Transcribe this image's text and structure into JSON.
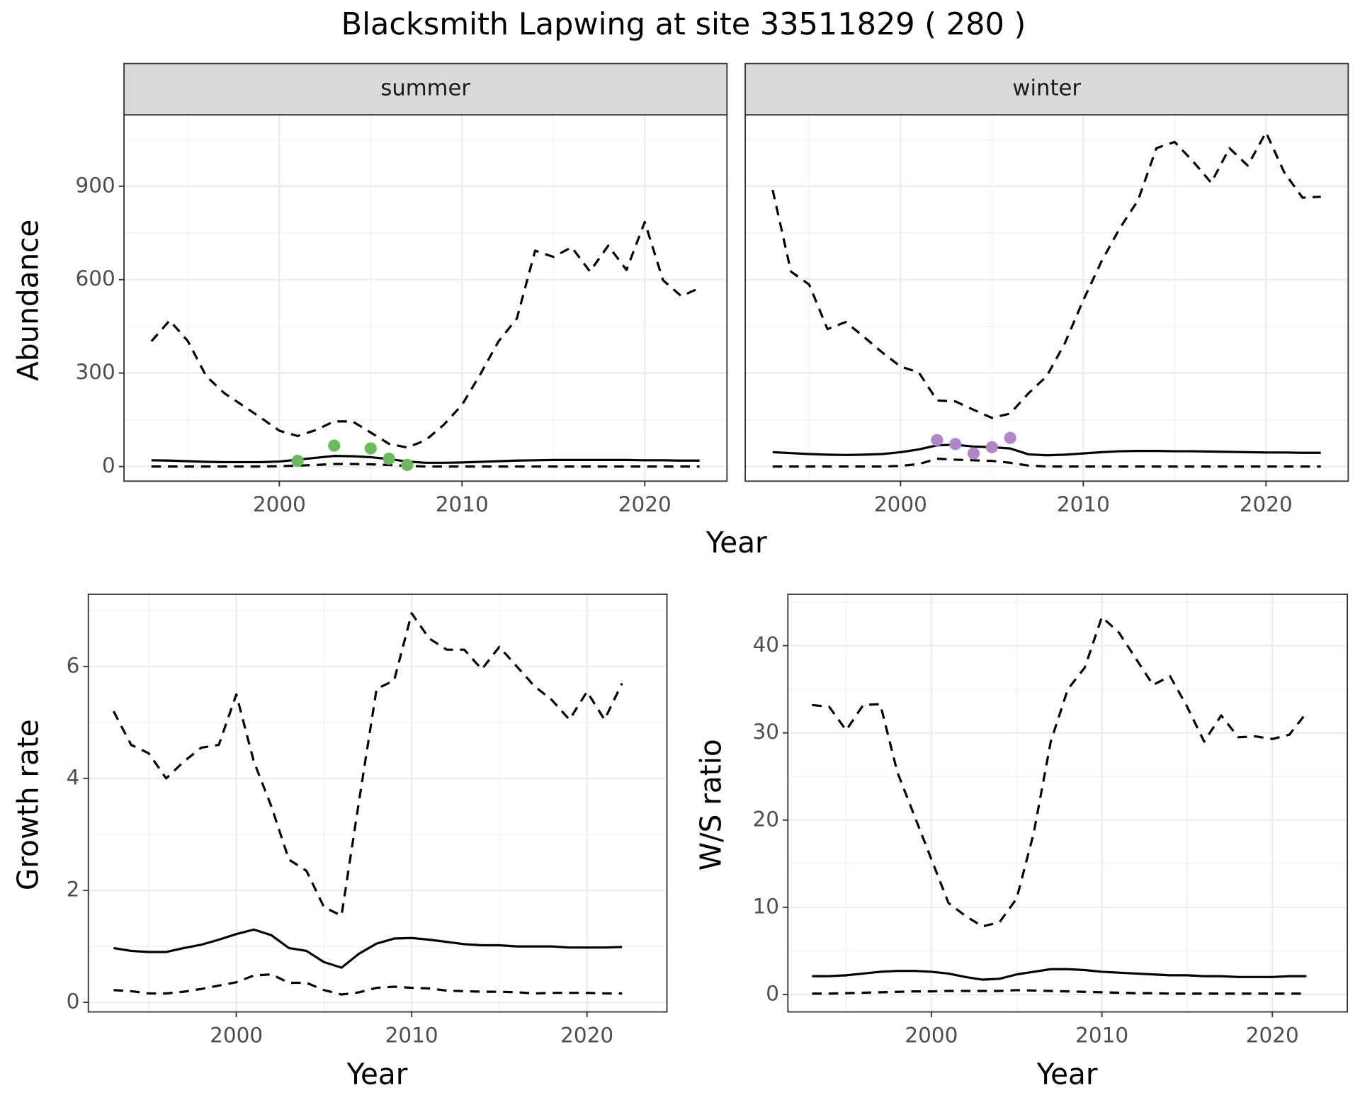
{
  "title": "Blacksmith Lapwing at site 33511829 ( 280 )",
  "chart_data": [
    {
      "type": "line",
      "facet": "summer",
      "ylabel": "Abundance",
      "xlabel": "Year",
      "x": [
        1993,
        1994,
        1995,
        1996,
        1997,
        1998,
        1999,
        2000,
        2001,
        2002,
        2003,
        2004,
        2005,
        2006,
        2007,
        2008,
        2009,
        2010,
        2011,
        2012,
        2013,
        2014,
        2015,
        2016,
        2017,
        2018,
        2019,
        2020,
        2021,
        2022,
        2023
      ],
      "xlim": [
        1991.5,
        2024.5
      ],
      "xticks": [
        2000,
        2010,
        2020
      ],
      "ylim": [
        -47,
        1129
      ],
      "yticks": [
        0,
        300,
        600,
        900
      ],
      "show_ytick_labels": true,
      "grid": true,
      "series": [
        {
          "kind": "line",
          "style": "dashed",
          "color": "#000000",
          "values": [
            402,
            469,
            402,
            290,
            235,
            196,
            156,
            115,
            98,
            117,
            145,
            145,
            109,
            73,
            61,
            84,
            134,
            198,
            296,
            402,
            475,
            693,
            673,
            704,
            626,
            709,
            631,
            785,
            598,
            547,
            573
          ]
        },
        {
          "kind": "line",
          "style": "solid",
          "color": "#000000",
          "values": [
            20,
            19,
            17,
            15,
            14,
            14,
            14,
            16,
            22,
            28,
            34,
            33,
            30,
            24,
            16,
            12,
            12,
            13,
            15,
            17,
            19,
            20,
            21,
            21,
            21,
            21,
            21,
            20,
            20,
            19,
            19
          ]
        },
        {
          "kind": "line",
          "style": "dashed",
          "color": "#000000",
          "values": [
            0,
            0,
            0,
            0,
            0,
            0,
            0,
            1,
            3,
            5,
            8,
            8,
            7,
            5,
            2,
            0,
            0,
            0,
            0,
            0,
            0,
            0,
            0,
            0,
            0,
            0,
            0,
            0,
            0,
            0,
            0
          ]
        },
        {
          "kind": "points",
          "color": "#6cbb5a",
          "x": [
            2001,
            2003,
            2005,
            2006,
            2007
          ],
          "values": [
            18,
            67,
            58,
            25,
            5
          ]
        }
      ]
    },
    {
      "type": "line",
      "facet": "winter",
      "x": [
        1993,
        1994,
        1995,
        1996,
        1997,
        1998,
        1999,
        2000,
        2001,
        2002,
        2003,
        2004,
        2005,
        2006,
        2007,
        2008,
        2009,
        2010,
        2011,
        2012,
        2013,
        2014,
        2015,
        2016,
        2017,
        2018,
        2019,
        2020,
        2021,
        2022,
        2023
      ],
      "xlim": [
        1991.5,
        2024.5
      ],
      "xticks": [
        2000,
        2010,
        2020
      ],
      "ylim": [
        -47,
        1129
      ],
      "yticks": [
        0,
        300,
        600,
        900
      ],
      "show_ytick_labels": false,
      "grid": true,
      "series": [
        {
          "kind": "line",
          "style": "dashed",
          "color": "#000000",
          "values": [
            888,
            626,
            584,
            441,
            464,
            416,
            366,
            321,
            302,
            212,
            209,
            182,
            156,
            170,
            235,
            290,
            397,
            534,
            659,
            765,
            855,
            1022,
            1042,
            980,
            911,
            1022,
            966,
            1073,
            944,
            863,
            866
          ]
        },
        {
          "kind": "line",
          "style": "solid",
          "color": "#000000",
          "values": [
            46,
            43,
            40,
            38,
            37,
            38,
            40,
            46,
            55,
            68,
            70,
            64,
            62,
            58,
            39,
            36,
            38,
            42,
            46,
            49,
            50,
            50,
            49,
            49,
            48,
            47,
            46,
            45,
            45,
            44,
            44
          ]
        },
        {
          "kind": "line",
          "style": "dashed",
          "color": "#000000",
          "values": [
            0,
            0,
            0,
            0,
            0,
            0,
            0,
            2,
            8,
            25,
            22,
            20,
            18,
            12,
            3,
            0,
            0,
            0,
            0,
            0,
            0,
            0,
            0,
            0,
            0,
            0,
            0,
            0,
            0,
            0,
            0
          ]
        },
        {
          "kind": "points",
          "color": "#b088c9",
          "x": [
            2002,
            2003,
            2004,
            2005,
            2006
          ],
          "values": [
            85,
            72,
            42,
            62,
            92
          ]
        }
      ]
    },
    {
      "type": "line",
      "ylabel": "Growth rate",
      "xlabel": "Year",
      "x": [
        1993,
        1994,
        1995,
        1996,
        1997,
        1998,
        1999,
        2000,
        2001,
        2002,
        2003,
        2004,
        2005,
        2006,
        2007,
        2008,
        2009,
        2010,
        2011,
        2012,
        2013,
        2014,
        2015,
        2016,
        2017,
        2018,
        2019,
        2020,
        2021,
        2022
      ],
      "xlim": [
        1991.56,
        2024.56
      ],
      "xticks": [
        2000,
        2010,
        2020
      ],
      "ylim": [
        -0.17,
        7.29
      ],
      "yticks": [
        0,
        2,
        4,
        6
      ],
      "show_ytick_labels": true,
      "grid": true,
      "series": [
        {
          "kind": "line",
          "style": "dashed",
          "color": "#000000",
          "values": [
            5.2,
            4.6,
            4.45,
            4.0,
            4.3,
            4.55,
            4.6,
            5.5,
            4.3,
            3.5,
            2.55,
            2.35,
            1.7,
            1.55,
            3.6,
            5.6,
            5.75,
            6.95,
            6.5,
            6.3,
            6.3,
            5.95,
            6.35,
            6.0,
            5.65,
            5.4,
            5.05,
            5.55,
            5.05,
            5.7
          ]
        },
        {
          "kind": "line",
          "style": "solid",
          "color": "#000000",
          "values": [
            0.97,
            0.92,
            0.9,
            0.9,
            0.97,
            1.03,
            1.12,
            1.22,
            1.3,
            1.2,
            0.97,
            0.92,
            0.72,
            0.62,
            0.87,
            1.05,
            1.14,
            1.15,
            1.12,
            1.08,
            1.04,
            1.02,
            1.02,
            1.0,
            1.0,
            1.0,
            0.98,
            0.98,
            0.98,
            0.99
          ]
        },
        {
          "kind": "line",
          "style": "dashed",
          "color": "#000000",
          "values": [
            0.22,
            0.2,
            0.16,
            0.16,
            0.19,
            0.24,
            0.3,
            0.36,
            0.48,
            0.5,
            0.35,
            0.35,
            0.22,
            0.14,
            0.18,
            0.26,
            0.28,
            0.26,
            0.25,
            0.21,
            0.2,
            0.19,
            0.19,
            0.18,
            0.16,
            0.17,
            0.17,
            0.17,
            0.16,
            0.16
          ]
        }
      ]
    },
    {
      "type": "line",
      "ylabel": "W/S ratio",
      "xlabel": "Year",
      "x": [
        1993,
        1994,
        1995,
        1996,
        1997,
        1998,
        1999,
        2000,
        2001,
        2002,
        2003,
        2004,
        2005,
        2006,
        2007,
        2008,
        2009,
        2010,
        2011,
        2012,
        2013,
        2014,
        2015,
        2016,
        2017,
        2018,
        2019,
        2020,
        2021,
        2022
      ],
      "xlim": [
        1991.58,
        2024.4
      ],
      "xticks": [
        2000,
        2010,
        2020
      ],
      "ylim": [
        -2.0,
        45.9
      ],
      "yticks": [
        0,
        10,
        20,
        30,
        40
      ],
      "show_ytick_labels": true,
      "grid": true,
      "series": [
        {
          "kind": "line",
          "style": "dashed",
          "color": "#000000",
          "values": [
            33.2,
            33.0,
            30.3,
            33.2,
            33.3,
            25.5,
            20.5,
            15.5,
            10.5,
            9.0,
            7.8,
            8.3,
            11,
            18.5,
            29,
            35,
            37.5,
            43.3,
            41.5,
            38.5,
            35.5,
            36.5,
            33,
            29,
            32,
            29.5,
            29.6,
            29.3,
            29.8,
            32.3
          ]
        },
        {
          "kind": "line",
          "style": "solid",
          "color": "#000000",
          "values": [
            2.1,
            2.1,
            2.2,
            2.4,
            2.6,
            2.7,
            2.7,
            2.6,
            2.4,
            2.0,
            1.7,
            1.8,
            2.3,
            2.6,
            2.9,
            2.9,
            2.8,
            2.6,
            2.5,
            2.4,
            2.3,
            2.2,
            2.2,
            2.1,
            2.1,
            2.0,
            2.0,
            2.0,
            2.1,
            2.1
          ]
        },
        {
          "kind": "line",
          "style": "dashed",
          "color": "#000000",
          "values": [
            0.1,
            0.1,
            0.15,
            0.2,
            0.25,
            0.3,
            0.35,
            0.35,
            0.4,
            0.4,
            0.4,
            0.4,
            0.5,
            0.45,
            0.4,
            0.35,
            0.3,
            0.25,
            0.2,
            0.15,
            0.15,
            0.1,
            0.1,
            0.1,
            0.1,
            0.1,
            0.1,
            0.1,
            0.1,
            0.1
          ]
        }
      ]
    }
  ]
}
